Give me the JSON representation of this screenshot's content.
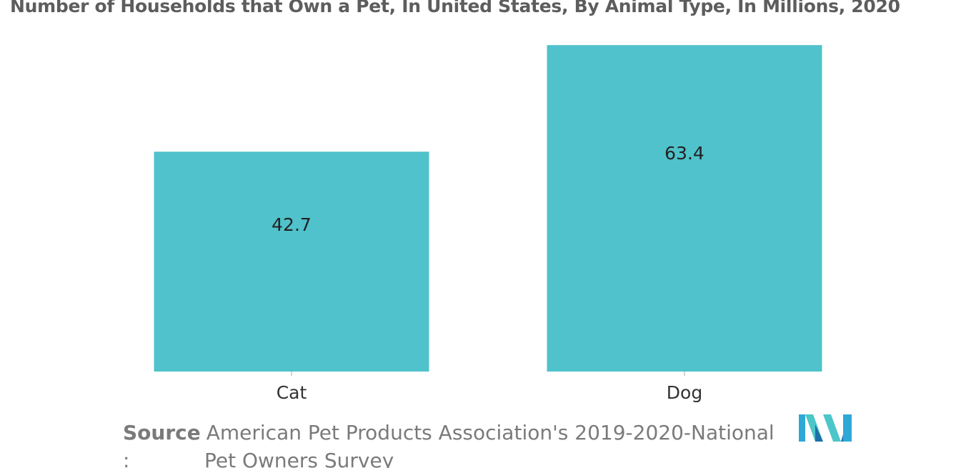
{
  "chart_data": {
    "type": "bar",
    "title": "Number of Households that Own a Pet, In United States, By Animal Type, In Millions, 2020",
    "categories": [
      "Cat",
      "Dog"
    ],
    "values": [
      42.7,
      63.4
    ],
    "data_labels": [
      "42.7",
      "63.4"
    ],
    "xlabel": "",
    "ylabel": "",
    "ylim": [
      0,
      68
    ],
    "grid": false,
    "legend": "none",
    "bar_color": "#50c2cb"
  },
  "source": {
    "label": "Source",
    "text_line1": "American Pet Products Association's 2019-2020-National",
    "colon": ":",
    "text_line2": "Pet Owners Survey"
  },
  "logo": {
    "icon": "mordor-intelligence-logo-icon",
    "colors": [
      "#2fa8d8",
      "#4cc6c9",
      "#1e6fa8"
    ]
  }
}
